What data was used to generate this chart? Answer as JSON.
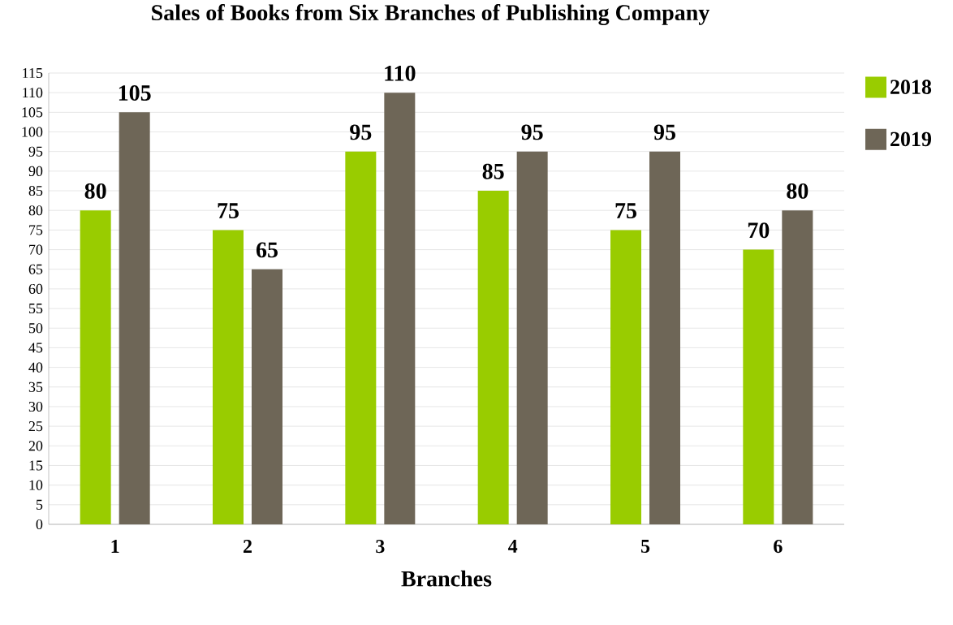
{
  "chart_data": {
    "type": "bar",
    "title": "Sales of Books from Six Branches of Publishing Company",
    "xlabel": "Branches",
    "categories": [
      "1",
      "2",
      "3",
      "4",
      "5",
      "6"
    ],
    "series": [
      {
        "name": "2018",
        "color": "#99cc00",
        "values": [
          80,
          75,
          95,
          85,
          75,
          70
        ]
      },
      {
        "name": "2019",
        "color": "#6e6657",
        "values": [
          105,
          65,
          110,
          95,
          95,
          80
        ]
      }
    ],
    "ylim": [
      0,
      115
    ],
    "yticks": [
      0,
      5,
      10,
      15,
      20,
      25,
      30,
      35,
      40,
      45,
      50,
      55,
      60,
      65,
      70,
      75,
      80,
      85,
      90,
      95,
      100,
      105,
      110,
      115
    ],
    "grid": "y",
    "legend": "top right",
    "data_labels": true
  }
}
